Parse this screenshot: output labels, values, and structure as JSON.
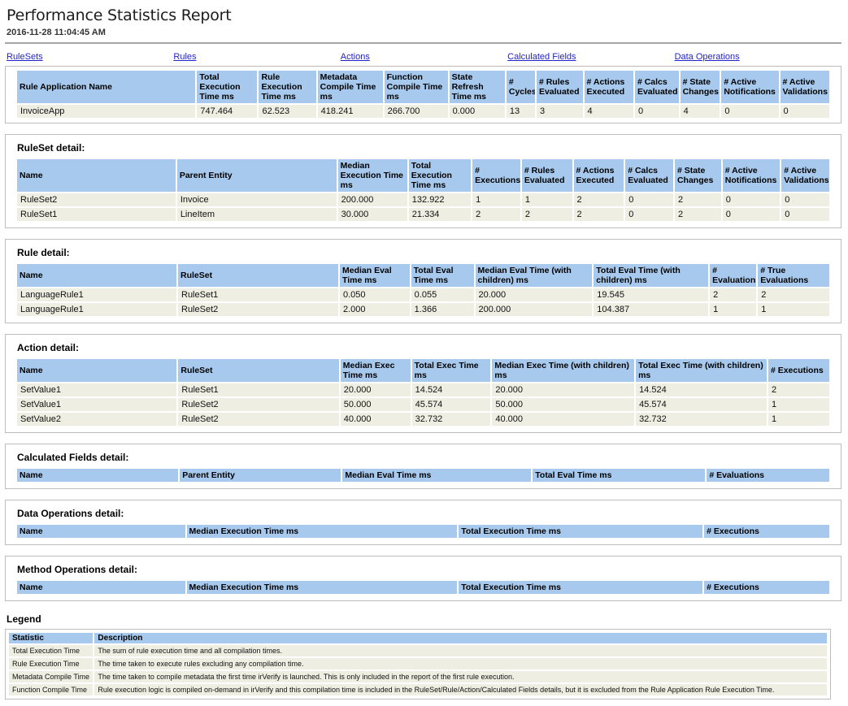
{
  "page": {
    "title": "Performance Statistics Report",
    "timestamp": "2016-11-28 11:04:45 AM"
  },
  "colors": {
    "header_blue": "#a6c9ed",
    "row_beige": "#eeeee2",
    "link_blue": "#2222cc",
    "box_border": "#bdbdbd"
  },
  "nav": {
    "links": [
      "RuleSets",
      "Rules",
      "Actions",
      "Calculated Fields",
      "Data Operations"
    ]
  },
  "summary_table": {
    "columns": [
      "Rule Application Name",
      "Total Execution Time ms",
      "Rule Execution Time ms",
      "Metadata Compile Time ms",
      "Function Compile Time ms",
      "State Refresh Time ms",
      "# Cycles",
      "# Rules Evaluated",
      "# Actions Executed",
      "# Calcs Evaluated",
      "# State Changes",
      "# Active Notifications",
      "# Active Validations"
    ],
    "rows": [
      [
        "InvoiceApp",
        "747.464",
        "62.523",
        "418.241",
        "266.700",
        "0.000",
        "13",
        "3",
        "4",
        "0",
        "4",
        "0",
        "0"
      ]
    ]
  },
  "sections": [
    {
      "heading": "RuleSet detail:",
      "columns": [
        "Name",
        "Parent Entity",
        "Median Execution Time ms",
        "Total Execution Time ms",
        "# Executions",
        "# Rules Evaluated",
        "# Actions Executed",
        "# Calcs Evaluated",
        "# State Changes",
        "# Active Notifications",
        "# Active Validations"
      ],
      "rows": [
        [
          "RuleSet2",
          "Invoice",
          "200.000",
          "132.922",
          "1",
          "1",
          "2",
          "0",
          "2",
          "0",
          "0"
        ],
        [
          "RuleSet1",
          "LineItem",
          "30.000",
          "21.334",
          "2",
          "2",
          "2",
          "0",
          "2",
          "0",
          "0"
        ]
      ]
    },
    {
      "heading": "Rule detail:",
      "columns": [
        "Name",
        "RuleSet",
        "Median Eval Time ms",
        "Total Eval Time ms",
        "Median Eval Time (with children) ms",
        "Total Eval Time (with children) ms",
        "# Evaluations",
        "# True Evaluations"
      ],
      "rows": [
        [
          "LanguageRule1",
          "RuleSet1",
          "0.050",
          "0.055",
          "20.000",
          "19.545",
          "2",
          "2"
        ],
        [
          "LanguageRule1",
          "RuleSet2",
          "2.000",
          "1.366",
          "200.000",
          "104.387",
          "1",
          "1"
        ]
      ]
    },
    {
      "heading": "Action detail:",
      "columns": [
        "Name",
        "RuleSet",
        "Median Exec Time ms",
        "Total Exec Time ms",
        "Median Exec Time (with children) ms",
        "Total Exec Time (with children) ms",
        "# Executions"
      ],
      "rows": [
        [
          "SetValue1",
          "RuleSet1",
          "20.000",
          "14.524",
          "20.000",
          "14.524",
          "2"
        ],
        [
          "SetValue1",
          "RuleSet2",
          "50.000",
          "45.574",
          "50.000",
          "45.574",
          "1"
        ],
        [
          "SetValue2",
          "RuleSet2",
          "40.000",
          "32.732",
          "40.000",
          "32.732",
          "1"
        ]
      ]
    },
    {
      "heading": "Calculated Fields detail:",
      "columns": [
        "Name",
        "Parent Entity",
        "Median Eval Time ms",
        "Total Eval Time ms",
        "# Evaluations"
      ],
      "rows": []
    },
    {
      "heading": "Data Operations detail:",
      "columns": [
        "Name",
        "Median Execution Time ms",
        "Total Execution Time ms",
        "# Executions"
      ],
      "rows": []
    },
    {
      "heading": "Method Operations detail:",
      "columns": [
        "Name",
        "Median Execution Time ms",
        "Total Execution Time ms",
        "# Executions"
      ],
      "rows": []
    }
  ],
  "legend": {
    "heading": "Legend",
    "columns": [
      "Statistic",
      "Description"
    ],
    "rows": [
      [
        "Total Execution Time",
        "The sum of rule execution time and all compilation times."
      ],
      [
        "Rule Execution Time",
        "The time taken to execute rules excluding any compilation time."
      ],
      [
        "Metadata Compile Time",
        "The time taken to compile metadata the first time irVerify is launched. This is only included in the report of the first rule execution."
      ],
      [
        "Function Compile Time",
        "Rule execution logic is compiled on-demand in irVerify and this compilation time is included in the RuleSet/Rule/Action/Calculated Fields details, but it is excluded from the Rule Application Rule Execution Time."
      ]
    ]
  }
}
